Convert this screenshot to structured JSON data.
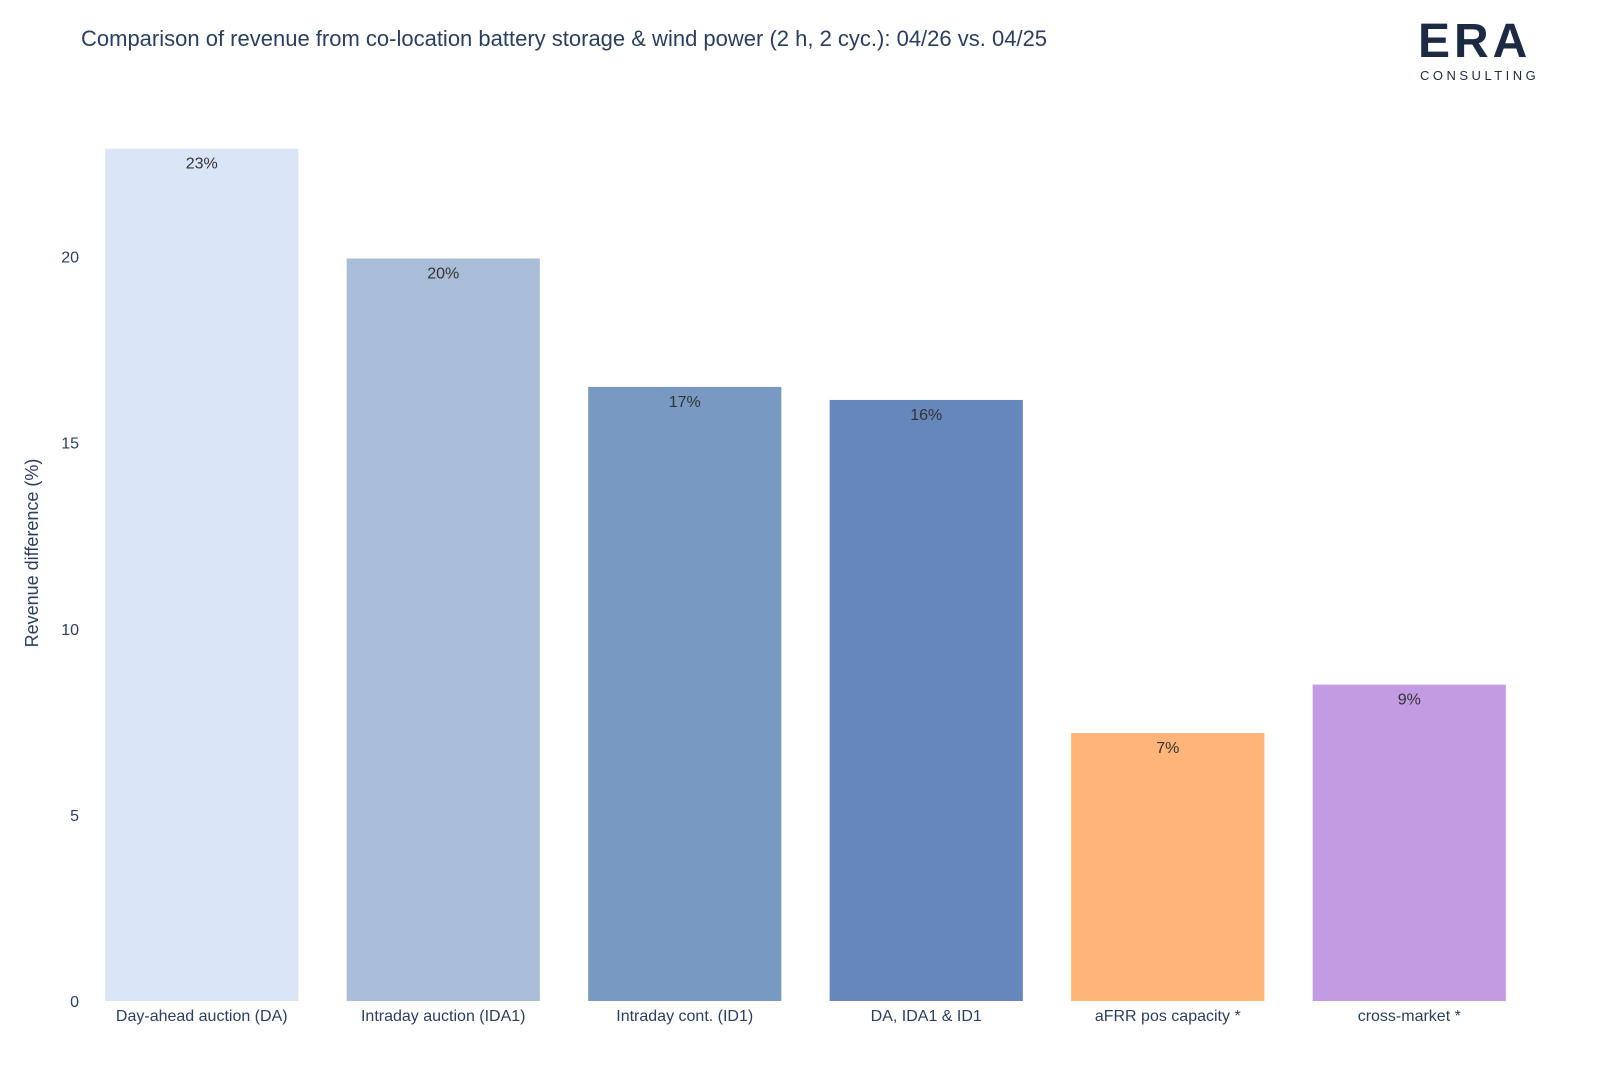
{
  "logo": {
    "wordmark": "ERA",
    "subtitle": "CONSULTING"
  },
  "chart_data": {
    "type": "bar",
    "title": "Comparison of revenue from co-location battery storage & wind power (2 h, 2 cyc.): 04/26 vs. 04/25",
    "xlabel": "",
    "ylabel": "Revenue difference (%)",
    "ylim": [
      0,
      23
    ],
    "yticks": [
      0,
      5,
      10,
      15,
      20
    ],
    "grid": false,
    "categories": [
      "Day-ahead auction (DA)",
      "Intraday auction (IDA1)",
      "Intraday cont. (ID1)",
      "DA, IDA1 & ID1",
      "aFRR pos capacity *",
      "cross-market *"
    ],
    "values": [
      22.9,
      19.95,
      16.5,
      16.15,
      7.2,
      8.5
    ],
    "data_labels": [
      "23%",
      "20%",
      "17%",
      "16%",
      "7%",
      "9%"
    ],
    "colors": [
      "#dae6f7",
      "#aabdd8",
      "#789ac2",
      "#6587bc",
      "#ffb478",
      "#c39be2"
    ]
  }
}
